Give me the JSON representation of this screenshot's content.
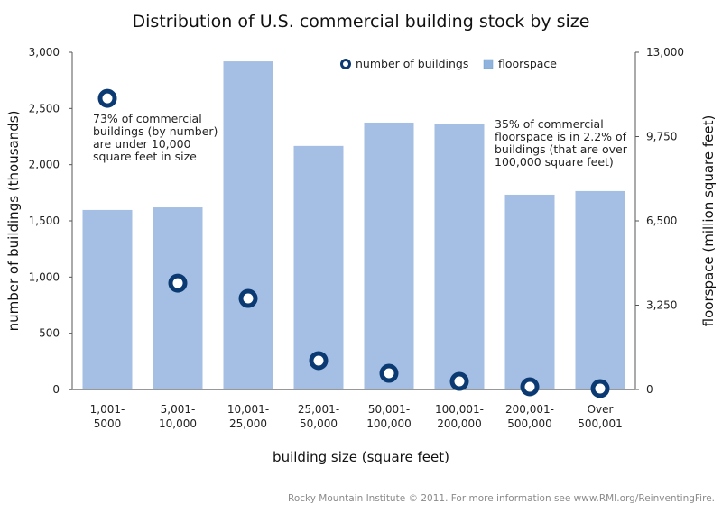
{
  "chart_data": {
    "type": "bar",
    "title": "Distribution of U.S. commercial building stock by size",
    "xlabel": "building size (square feet)",
    "ylabel": "number of buildings (thousands)",
    "y2label": "floorspace (million square feet)",
    "categories": [
      [
        "1,001-",
        "5000"
      ],
      [
        "5,001-",
        "10,000"
      ],
      [
        "10,001-",
        "25,000"
      ],
      [
        "25,001-",
        "50,000"
      ],
      [
        "50,001-",
        "100,000"
      ],
      [
        "100,001-",
        "200,000"
      ],
      [
        "200,001-",
        "500,000"
      ],
      [
        "Over",
        "500,001"
      ]
    ],
    "series": [
      {
        "name": "floorspace",
        "type": "bar",
        "axis": "right",
        "color": "#a4bfe3",
        "values": [
          6920,
          7020,
          12650,
          9390,
          10290,
          10220,
          7510,
          7650
        ]
      },
      {
        "name": "number of buildings",
        "type": "scatter",
        "axis": "left",
        "color": "#0b3a73",
        "values": [
          2590,
          946,
          810,
          257,
          144,
          72,
          24,
          8
        ]
      }
    ],
    "ylim": [
      0,
      3000
    ],
    "yticks": [
      "0",
      "500",
      "1,000",
      "1,500",
      "2,000",
      "2,500",
      "3,000"
    ],
    "ytick_values": [
      0,
      500,
      1000,
      1500,
      2000,
      2500,
      3000
    ],
    "y2lim": [
      0,
      13000
    ],
    "y2ticks": [
      "0",
      "3,250",
      "6,500",
      "9,750",
      "13,000"
    ],
    "y2tick_values": [
      0,
      3250,
      6500,
      9750,
      13000
    ],
    "grid": false,
    "legend": {
      "placement": "top-center",
      "entries": [
        "number of buildings",
        "floorspace"
      ]
    },
    "annotations": [
      [
        "73% of commercial",
        "buildings (by number)",
        "are under 10,000",
        "square feet in size"
      ],
      [
        "35% of commercial",
        "floorspace is in 2.2% of",
        "buildings (that are over",
        "100,000 square feet)"
      ]
    ]
  },
  "footer": "Rocky Mountain Institute © 2011. For more information see www.RMI.org/ReinventingFire."
}
